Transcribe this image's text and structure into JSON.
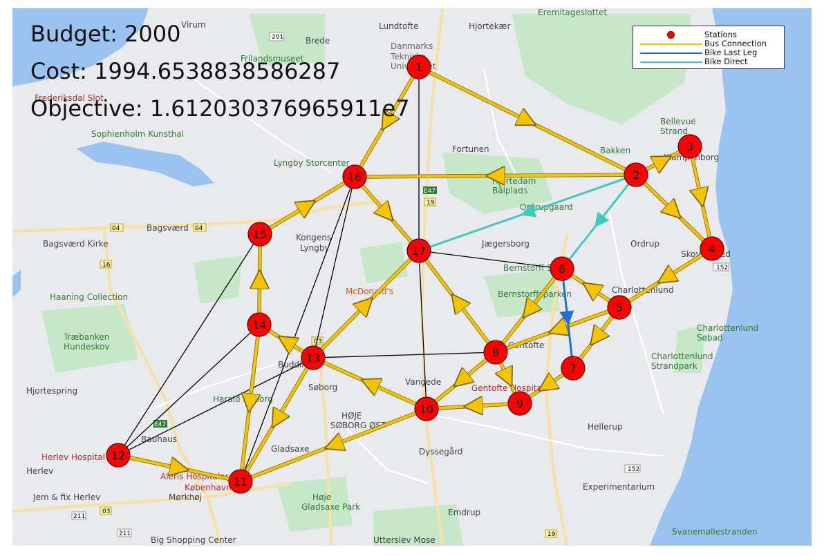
{
  "info": {
    "budget": "Budget: 2000",
    "cost": "Cost: 1994.6538838586287",
    "objective": "Objective: 1.612030376965911e7"
  },
  "legend": [
    {
      "label": "Stations",
      "kind": "dot",
      "color": "#ff0000"
    },
    {
      "label": "Bus Connection",
      "kind": "line",
      "color": "#f2c200"
    },
    {
      "label": "Bike Last Leg",
      "kind": "line",
      "color": "#1e6fd9"
    },
    {
      "label": "Bike Direct",
      "kind": "line",
      "color": "#40c8c0"
    }
  ],
  "colors": {
    "station": "#ff0000",
    "bus": "#f5c400",
    "bike_last_leg": "#1f6fd6",
    "bike_direct": "#3fc9bd",
    "black_link": "#000000",
    "water": "#9bc3f0",
    "land": "#e9ecef",
    "park": "#c6e8c9"
  },
  "stations": [
    {
      "id": "1"
    },
    {
      "id": "2"
    },
    {
      "id": "3"
    },
    {
      "id": "4"
    },
    {
      "id": "5"
    },
    {
      "id": "6"
    },
    {
      "id": "7"
    },
    {
      "id": "8"
    },
    {
      "id": "9"
    },
    {
      "id": "10"
    },
    {
      "id": "11"
    },
    {
      "id": "12"
    },
    {
      "id": "13"
    },
    {
      "id": "14"
    },
    {
      "id": "15"
    },
    {
      "id": "16"
    },
    {
      "id": "17"
    }
  ],
  "links": {
    "bus": [
      [
        "1",
        "16"
      ],
      [
        "1",
        "2"
      ],
      [
        "2",
        "3"
      ],
      [
        "3",
        "4"
      ],
      [
        "2",
        "4"
      ],
      [
        "4",
        "5"
      ],
      [
        "5",
        "6"
      ],
      [
        "5",
        "8"
      ],
      [
        "5",
        "7"
      ],
      [
        "6",
        "8"
      ],
      [
        "7",
        "9"
      ],
      [
        "8",
        "9"
      ],
      [
        "8",
        "17"
      ],
      [
        "9",
        "10"
      ],
      [
        "8",
        "10"
      ],
      [
        "10",
        "13"
      ],
      [
        "10",
        "11"
      ],
      [
        "13",
        "11"
      ],
      [
        "13",
        "14"
      ],
      [
        "13",
        "17"
      ],
      [
        "14",
        "15"
      ],
      [
        "14",
        "11"
      ],
      [
        "15",
        "16"
      ],
      [
        "16",
        "17"
      ],
      [
        "12",
        "11"
      ],
      [
        "2",
        "16"
      ]
    ],
    "bike_last_leg": [
      [
        "6",
        "7"
      ]
    ],
    "bike_direct": [
      [
        "2",
        "17"
      ],
      [
        "2",
        "6"
      ]
    ],
    "black": [
      [
        "1",
        "17"
      ],
      [
        "17",
        "10"
      ],
      [
        "17",
        "6"
      ],
      [
        "16",
        "11"
      ],
      [
        "16",
        "13"
      ],
      [
        "13",
        "8"
      ],
      [
        "15",
        "12"
      ],
      [
        "14",
        "12"
      ],
      [
        "14",
        "11"
      ],
      [
        "13",
        "12"
      ]
    ]
  },
  "map_labels": [
    "Virum",
    "Brede",
    "Lundtofte",
    "Hjortekær",
    "Eremitageslottet",
    "Danmarks Tekniske Universitet",
    "Frilandsmuseet",
    "Frederiksdal Slot",
    "Sophienholm Kunsthal",
    "Fortunen",
    "Bakken",
    "Bellevue Strand",
    "Klampenborg",
    "Lyngby Storcenter",
    "Hjortedam Bålplads",
    "Ordrupgaard",
    "Bagsværd",
    "Kongens Lyngby",
    "Jægersborg",
    "Ordrup",
    "Bagsværd Kirke",
    "Bernstorff Slot",
    "Skovshoved",
    "Haaning Collection",
    "McDonald's",
    "Bernstorffsparken",
    "Charlottenlund",
    "Charlottenlund Søbad",
    "Charlottenlund Strandpark",
    "Træbanken Hundeskov",
    "Buddinge",
    "Gentofte",
    "Hjortespring",
    "Søborg",
    "Vangede",
    "Gentofte Hospital",
    "Harald Nyborg",
    "HØJE SØBORG ØST",
    "Bauhaus",
    "Hellerup",
    "Herlev Hospital",
    "Herlev",
    "Gladsaxe",
    "Dyssegård",
    "Aleris Hospitaler København",
    "Mørkhøj",
    "Høje Gladsaxe Park",
    "Experimentarium",
    "Jem & fix Herlev",
    "Emdrup",
    "Big Shopping Center",
    "Utterslev Mose",
    "Svanemøllestranden"
  ],
  "road_shields": [
    "201",
    "04",
    "04",
    "16",
    "E47",
    "19",
    "03",
    "211",
    "211",
    "03",
    "E47",
    "152",
    "152",
    "19"
  ]
}
